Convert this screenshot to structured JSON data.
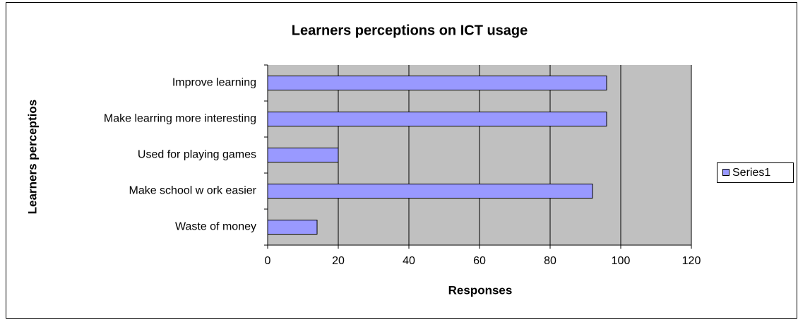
{
  "chart_data": {
    "type": "barh",
    "title": "Learners perceptions on ICT usage",
    "x_label": "Responses",
    "y_label": "Learners perceptios",
    "categories": [
      "Improve learning",
      "Make learring more interesting",
      "Used for playing games",
      "Make school w ork easier",
      "Waste of money"
    ],
    "series": [
      {
        "name": "Series1",
        "color": "#9999ff",
        "values": [
          96,
          96,
          20,
          92,
          14
        ]
      }
    ],
    "xlim": [
      0,
      120
    ],
    "xticks": [
      0,
      20,
      40,
      60,
      80,
      100,
      120
    ],
    "grid": true,
    "legend": "right",
    "plot_background": "#c0c0c0"
  }
}
